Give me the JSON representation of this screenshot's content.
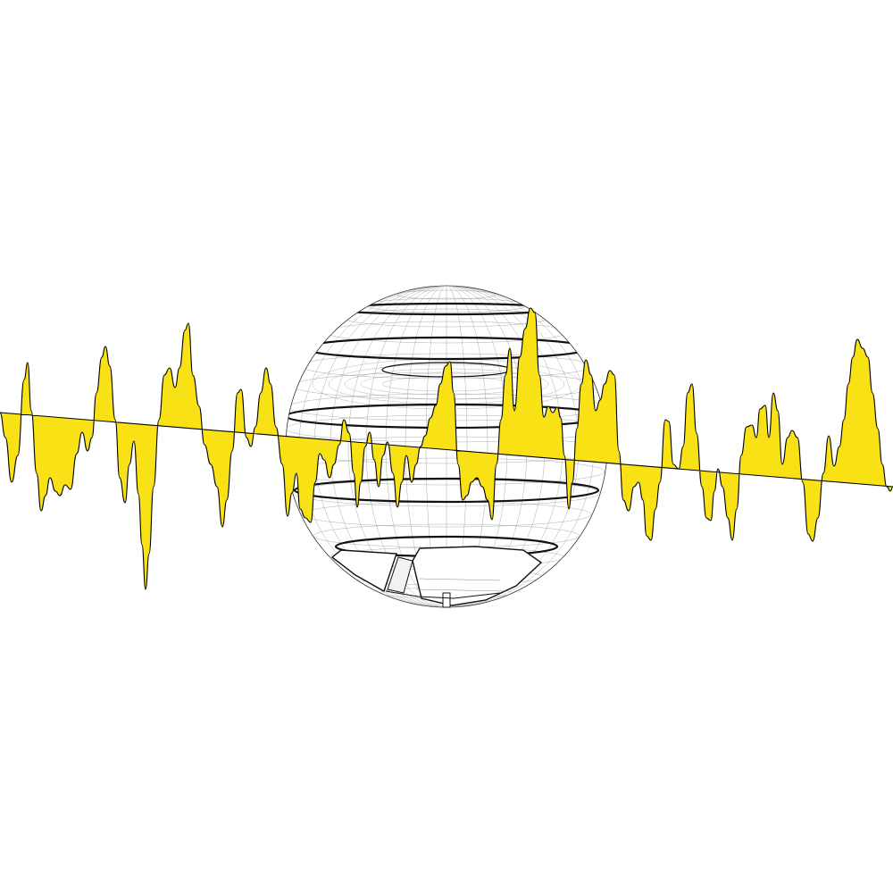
{
  "colors": {
    "background": "#ffffff",
    "wave_fill": "#f8e216",
    "stroke": "#000000",
    "mesh": "#555555",
    "band": "#111111"
  },
  "icons": {
    "sphere": "wireframe-sphere-icon",
    "wave": "yellow-waveform-icon"
  }
}
